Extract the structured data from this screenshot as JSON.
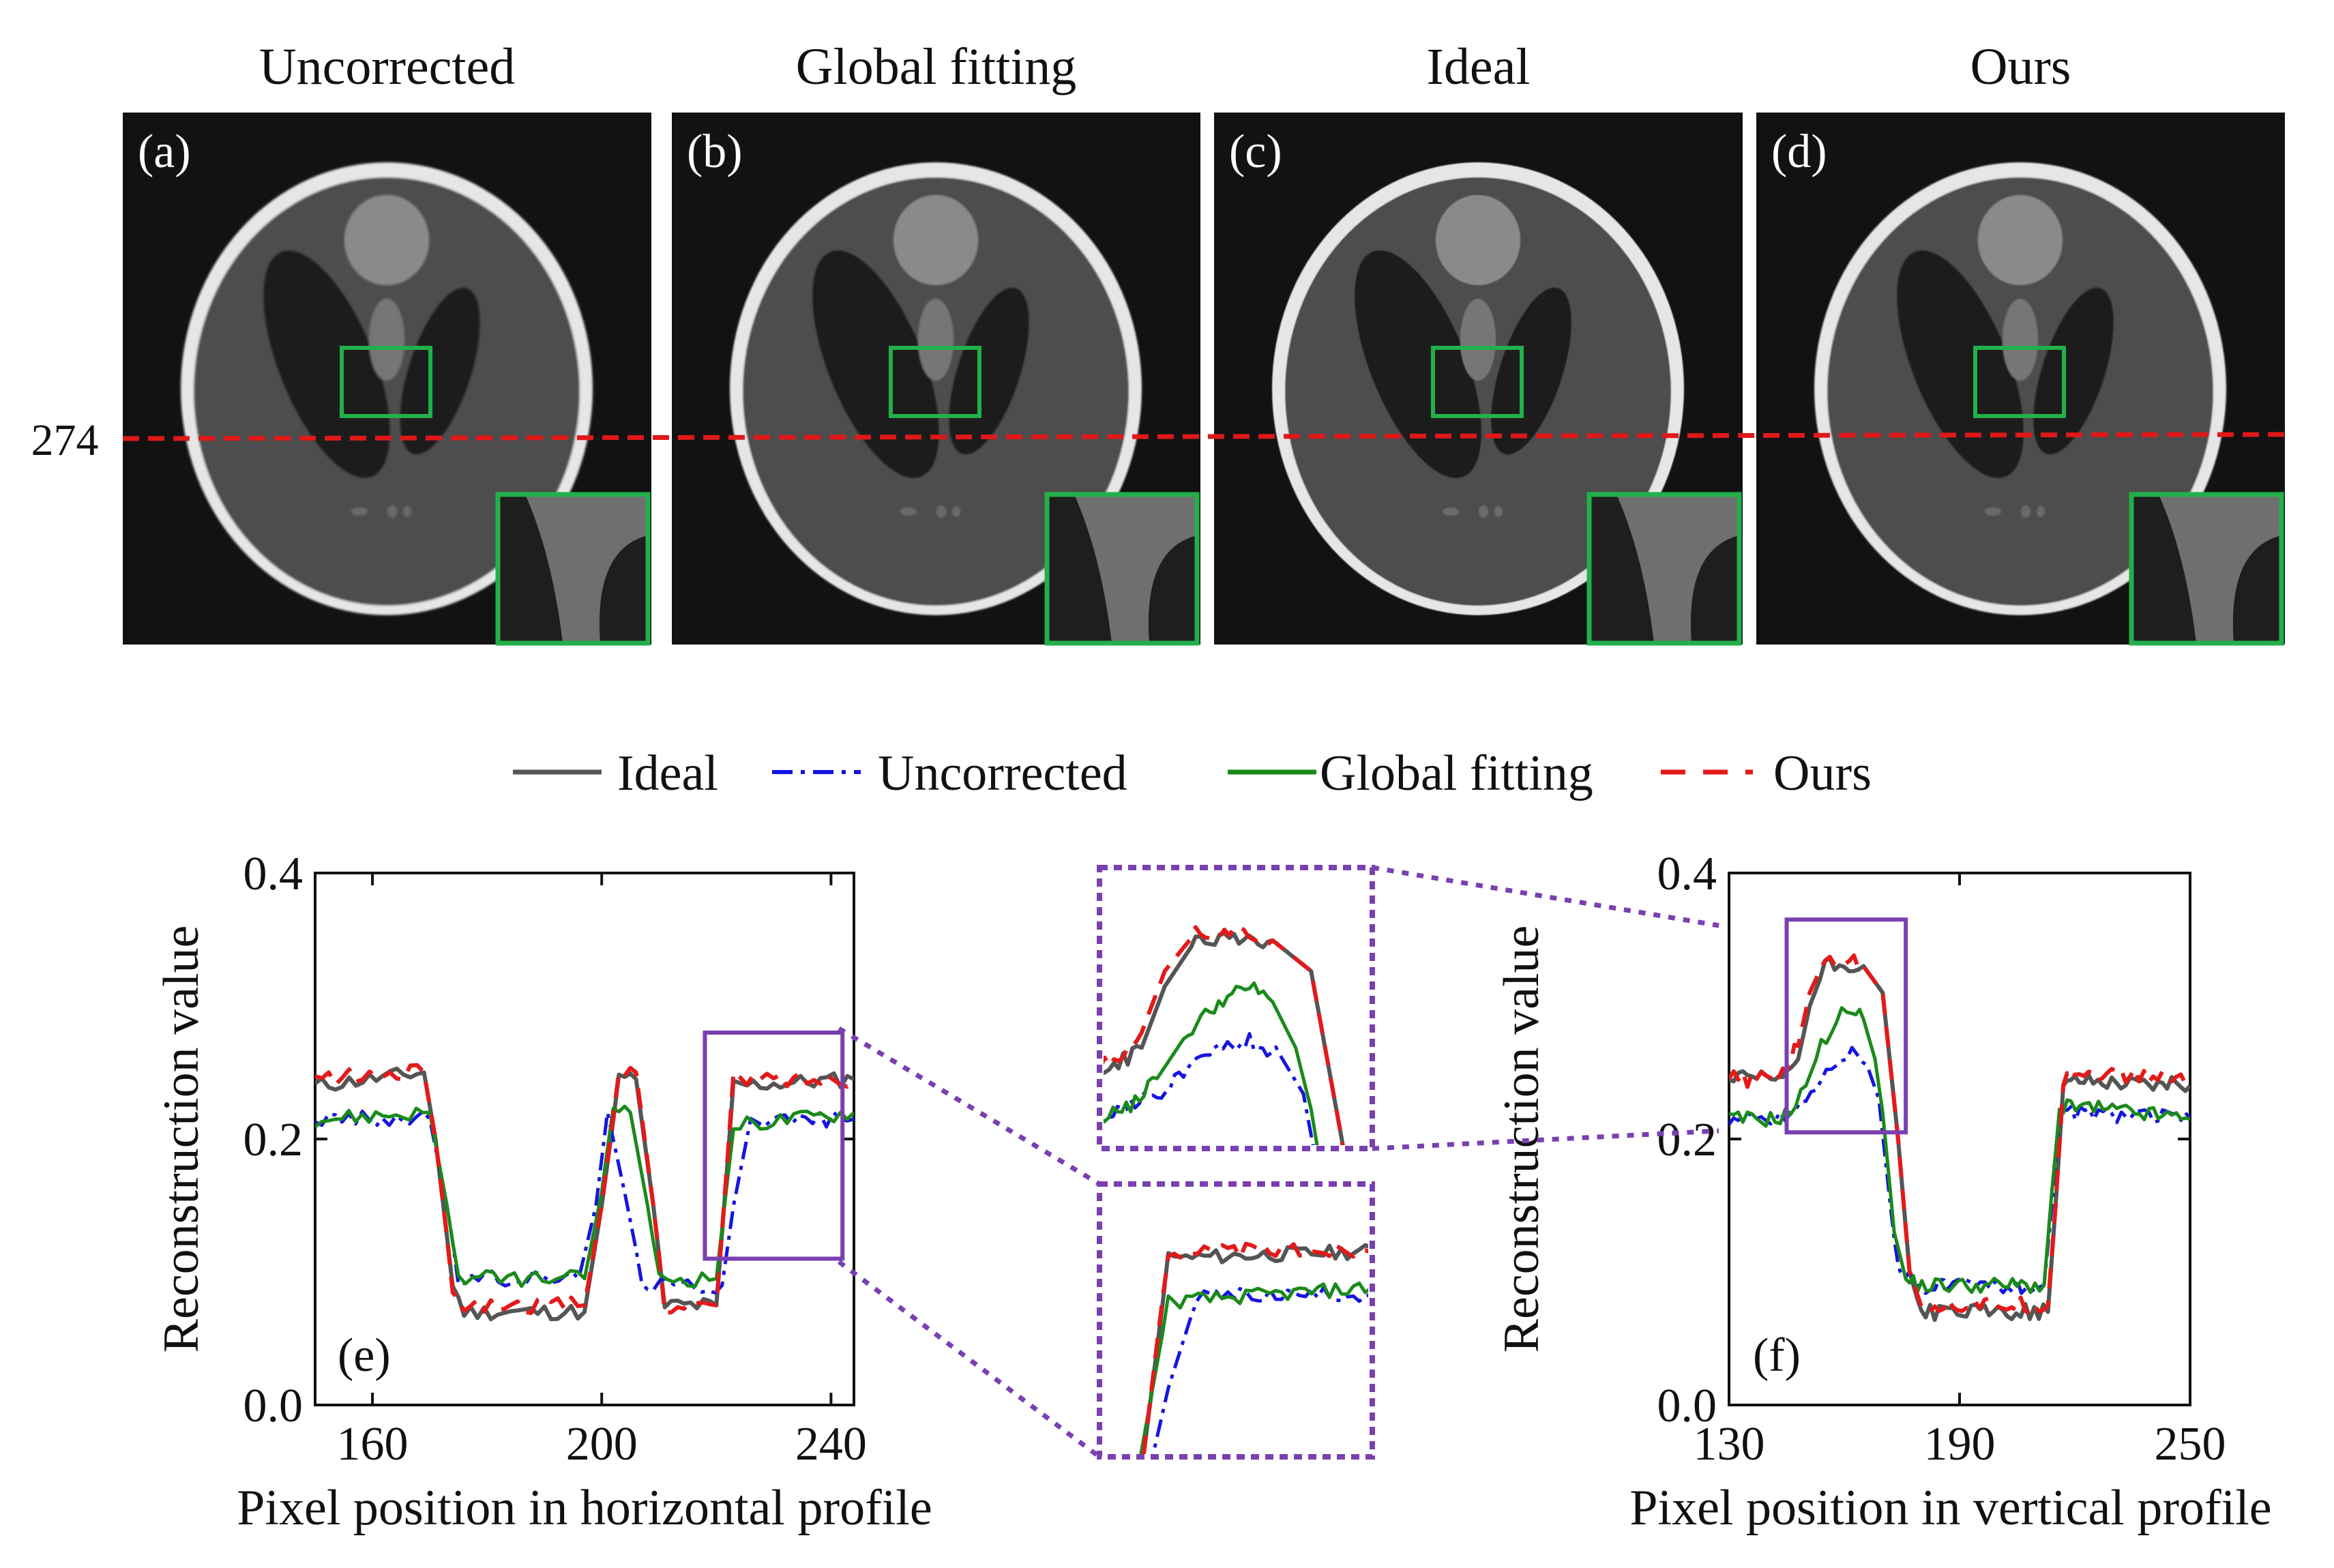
{
  "colors": {
    "ideal": "#555555",
    "uncorrected": "#1515e0",
    "global": "#1a8a1a",
    "ours": "#e41a1a",
    "roi_green": "#22b04a",
    "zoom_purple": "#7a3fb0",
    "profile_line": "#e01818"
  },
  "images": {
    "panels": [
      {
        "title": "Uncorrected",
        "tag": "(a)"
      },
      {
        "title": "Global fitting",
        "tag": "(b)"
      },
      {
        "title": "Ideal",
        "tag": "(c)"
      },
      {
        "title": "Ours",
        "tag": "(d)"
      }
    ],
    "profile_row": "274"
  },
  "legend": {
    "items": [
      {
        "label": "Ideal",
        "key": "ideal"
      },
      {
        "label": "Uncorrected",
        "key": "uncorrected"
      },
      {
        "label": "Global fitting",
        "key": "global"
      },
      {
        "label": "Ours",
        "key": "ours"
      }
    ]
  },
  "chart_data": [
    {
      "type": "line",
      "panel": "(e)",
      "xlabel": "Pixel position in horizontal profile",
      "ylabel": "Reconstruction value",
      "xlim": [
        150,
        244
      ],
      "ylim": [
        0.0,
        0.4
      ],
      "xticks": [
        "160",
        "200",
        "240"
      ],
      "yticks": [
        "0.0",
        "0.2",
        "0.4"
      ],
      "series": [
        {
          "name": "Ideal",
          "key": "ideal",
          "x": [
            150,
            169,
            171,
            174,
            176,
            197,
            200,
            203,
            206,
            209,
            211,
            220,
            223,
            244
          ],
          "y": [
            0.24,
            0.25,
            0.2,
            0.09,
            0.07,
            0.07,
            0.15,
            0.245,
            0.245,
            0.15,
            0.075,
            0.075,
            0.24,
            0.245
          ]
        },
        {
          "name": "Uncorrected",
          "key": "uncorrected",
          "x": [
            150,
            170,
            173,
            175,
            196,
            199,
            201,
            204,
            207,
            209,
            221,
            223,
            226,
            244
          ],
          "y": [
            0.215,
            0.215,
            0.15,
            0.095,
            0.095,
            0.15,
            0.22,
            0.16,
            0.095,
            0.09,
            0.09,
            0.15,
            0.215,
            0.215
          ]
        },
        {
          "name": "Global fitting",
          "key": "global",
          "x": [
            150,
            170,
            173,
            175,
            197,
            200,
            202,
            205,
            208,
            210,
            220,
            223,
            244
          ],
          "y": [
            0.215,
            0.22,
            0.15,
            0.095,
            0.095,
            0.16,
            0.225,
            0.22,
            0.15,
            0.095,
            0.095,
            0.21,
            0.22
          ]
        },
        {
          "name": "Ours",
          "key": "ours",
          "x": [
            150,
            169,
            171,
            174,
            176,
            197,
            200,
            203,
            206,
            209,
            211,
            220,
            223,
            244
          ],
          "y": [
            0.245,
            0.25,
            0.2,
            0.09,
            0.075,
            0.075,
            0.15,
            0.25,
            0.25,
            0.15,
            0.075,
            0.075,
            0.245,
            0.245
          ]
        }
      ],
      "zoom_box": {
        "x": [
          218,
          242
        ],
        "y": [
          0.11,
          0.28
        ]
      }
    },
    {
      "type": "line",
      "panel": "(f)",
      "xlabel": "Pixel position in vertical profile",
      "ylabel": "Reconstruction value",
      "xlim": [
        130,
        250
      ],
      "ylim": [
        0.0,
        0.4
      ],
      "xticks": [
        "130",
        "190",
        "250"
      ],
      "yticks": [
        "0.0",
        "0.2",
        "0.4"
      ],
      "series": [
        {
          "name": "Ideal",
          "key": "ideal",
          "x": [
            130,
            142,
            145,
            148,
            151,
            155,
            160,
            165,
            170,
            174,
            177,
            180,
            213,
            215,
            217,
            220,
            250
          ],
          "y": [
            0.245,
            0.245,
            0.25,
            0.26,
            0.3,
            0.33,
            0.33,
            0.33,
            0.31,
            0.2,
            0.1,
            0.07,
            0.07,
            0.15,
            0.24,
            0.245,
            0.24
          ]
        },
        {
          "name": "Uncorrected",
          "key": "uncorrected",
          "x": [
            130,
            142,
            146,
            150,
            154,
            158,
            162,
            166,
            169,
            172,
            174,
            177,
            180,
            212,
            214,
            216,
            219,
            250
          ],
          "y": [
            0.215,
            0.215,
            0.22,
            0.23,
            0.245,
            0.26,
            0.265,
            0.255,
            0.23,
            0.15,
            0.1,
            0.095,
            0.09,
            0.09,
            0.15,
            0.215,
            0.22,
            0.215
          ]
        },
        {
          "name": "Global fitting",
          "key": "global",
          "x": [
            130,
            142,
            146,
            150,
            154,
            158,
            162,
            165,
            168,
            170,
            173,
            176,
            179,
            212,
            214,
            216,
            219,
            250
          ],
          "y": [
            0.215,
            0.215,
            0.22,
            0.24,
            0.27,
            0.29,
            0.3,
            0.29,
            0.26,
            0.22,
            0.13,
            0.095,
            0.09,
            0.09,
            0.16,
            0.22,
            0.225,
            0.215
          ]
        },
        {
          "name": "Ours",
          "key": "ours",
          "x": [
            130,
            142,
            145,
            148,
            151,
            155,
            160,
            165,
            170,
            174,
            177,
            180,
            213,
            215,
            217,
            220,
            250
          ],
          "y": [
            0.245,
            0.245,
            0.255,
            0.27,
            0.31,
            0.335,
            0.335,
            0.33,
            0.31,
            0.2,
            0.1,
            0.075,
            0.075,
            0.15,
            0.245,
            0.25,
            0.245
          ]
        }
      ],
      "zoom_box": {
        "x": [
          145,
          176
        ],
        "y": [
          0.205,
          0.365
        ]
      }
    }
  ]
}
